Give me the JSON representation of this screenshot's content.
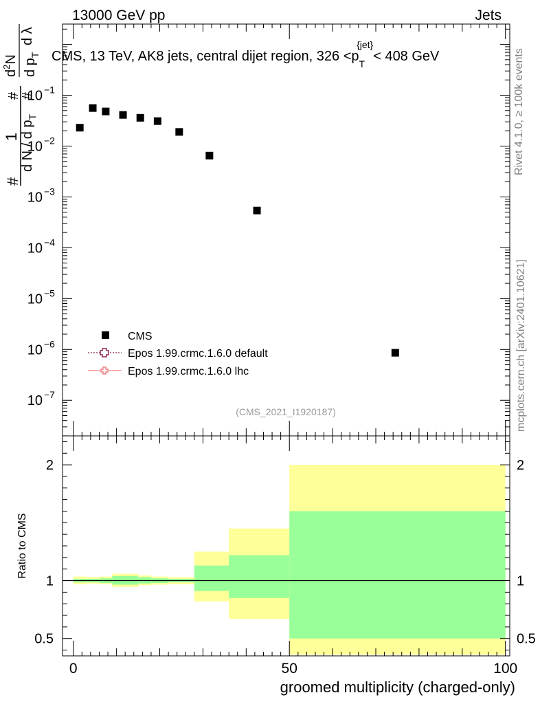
{
  "header": {
    "left": "13000 GeV pp",
    "right": "Jets"
  },
  "side_labels": {
    "rivet": "Rivet 4.1.0, ≥ 100k events",
    "mcplots": "mcplots.cern.ch [arXiv:2401.10621]"
  },
  "colors": {
    "data": "#000000",
    "epos_default": "#8b2252",
    "epos_lhc": "#ee8080",
    "band_inner": "#99ff99",
    "band_outer": "#ffff99"
  },
  "chart_data": [
    {
      "type": "scatter",
      "panel": "main",
      "title_parts": {
        "main": "CMS, 13 TeV, AK8 jets, central dijet region, 326 <p",
        "sub": "T",
        "sup": "{jet}",
        "tail": "< 408 GeV"
      },
      "ylabel": "1/dN/dpT # d²N/dpT dλ",
      "ylabel_parts": {
        "one": "1",
        "hash_left": "#",
        "denominator": "d N / d p",
        "sub_T": "T",
        "hash_mid": "#",
        "numerator": "d",
        "numerator_sup": "2",
        "numerator_N": "N",
        "den2": "d p",
        "den2_sub": "T",
        "dlambda": "d λ",
        "hash_right": "#"
      },
      "yscale": "log",
      "ylim_exp": [
        -7.7,
        0.4
      ],
      "yticks_exp": [
        -7,
        -6,
        -5,
        -4,
        -3,
        -2,
        -1
      ],
      "ytick_labels": [
        {
          "base": "10",
          "exp": "−7"
        },
        {
          "base": "10",
          "exp": "−6"
        },
        {
          "base": "10",
          "exp": "−5"
        },
        {
          "base": "10",
          "exp": "−4"
        },
        {
          "base": "10",
          "exp": "−3"
        },
        {
          "base": "10",
          "exp": "−2"
        },
        {
          "base": "10",
          "exp": "−1"
        }
      ],
      "xlim": [
        -2.5,
        101
      ],
      "series": [
        {
          "name": "CMS",
          "marker": "square",
          "x": [
            1.5,
            4.5,
            7.5,
            11.5,
            15.5,
            19.5,
            24.5,
            31.5,
            42.5,
            74.5
          ],
          "y": [
            0.023,
            0.056,
            0.048,
            0.041,
            0.036,
            0.031,
            0.019,
            0.0065,
            0.00054,
            8.6e-07
          ]
        }
      ],
      "legend": [
        {
          "label": "CMS",
          "style": "square"
        },
        {
          "label": "Epos 1.99.crmc.1.6.0 default",
          "style": "dotted-cross"
        },
        {
          "label": "Epos 1.99.crmc.1.6.0 lhc",
          "style": "solid-cross"
        }
      ],
      "legend_position": "lower-left",
      "watermark": "(CMS_2021_I1920187)"
    },
    {
      "type": "area",
      "panel": "ratio",
      "ylabel": "Ratio to CMS",
      "xlabel": "groomed multiplicity (charged-only)",
      "ylim": [
        0.35,
        2.25
      ],
      "yticks": [
        0.5,
        1,
        2
      ],
      "ytick_labels": [
        "0.5",
        "1",
        "2"
      ],
      "xlim": [
        -2.5,
        101
      ],
      "xticks": [
        0,
        50,
        100
      ],
      "xtick_labels": [
        "0",
        "50",
        "100"
      ],
      "reference_line": 1,
      "bins": [
        {
          "lo": 0,
          "hi": 3,
          "inner": [
            0.985,
            1.015
          ],
          "outer": [
            0.97,
            1.035
          ]
        },
        {
          "lo": 3,
          "hi": 6,
          "inner": [
            0.985,
            1.015
          ],
          "outer": [
            0.975,
            1.03
          ]
        },
        {
          "lo": 6,
          "hi": 9,
          "inner": [
            0.98,
            1.02
          ],
          "outer": [
            0.97,
            1.035
          ]
        },
        {
          "lo": 9,
          "hi": 15,
          "inner": [
            0.965,
            1.04
          ],
          "outer": [
            0.945,
            1.06
          ]
        },
        {
          "lo": 15,
          "hi": 18,
          "inner": [
            0.975,
            1.03
          ],
          "outer": [
            0.96,
            1.045
          ]
        },
        {
          "lo": 18,
          "hi": 22,
          "inner": [
            0.98,
            1.02
          ],
          "outer": [
            0.965,
            1.035
          ]
        },
        {
          "lo": 22,
          "hi": 28,
          "inner": [
            0.985,
            1.015
          ],
          "outer": [
            0.97,
            1.03
          ]
        },
        {
          "lo": 28,
          "hi": 36,
          "inner": [
            0.91,
            1.13
          ],
          "outer": [
            0.82,
            1.25
          ]
        },
        {
          "lo": 36,
          "hi": 50,
          "inner": [
            0.85,
            1.22
          ],
          "outer": [
            0.67,
            1.45
          ]
        },
        {
          "lo": 50,
          "hi": 100,
          "inner": [
            0.5,
            1.6
          ],
          "outer": [
            0.36,
            2.0
          ]
        }
      ]
    }
  ]
}
